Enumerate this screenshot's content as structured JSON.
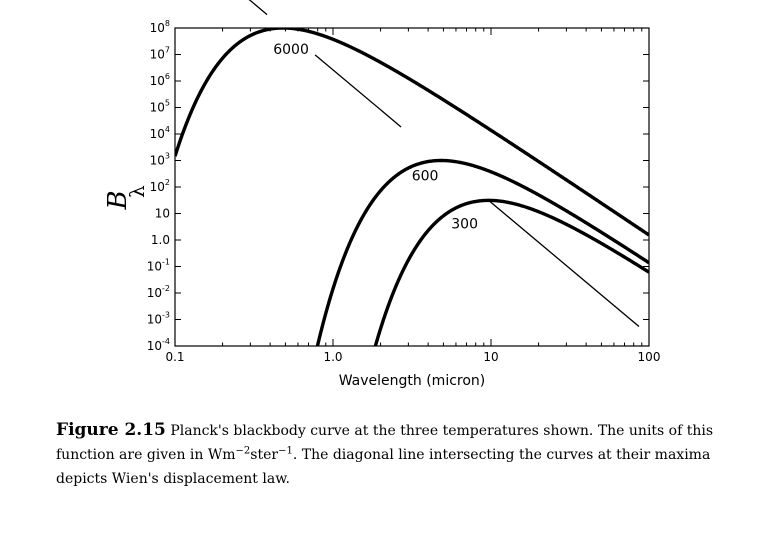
{
  "chart_data": {
    "type": "line",
    "x_scale": "log",
    "y_scale": "log",
    "xlabel": "Wavelength (micron)",
    "ylabel": "B",
    "ylabel_sub": "λ",
    "xlim": [
      0.1,
      100
    ],
    "ylim": [
      0.0001,
      100000000
    ],
    "x_ticks": [
      "0.1",
      "1.0",
      "10",
      "100"
    ],
    "x_tick_values": [
      0.1,
      1,
      10,
      100
    ],
    "y_tick_values": [
      0.0001,
      0.001,
      0.01,
      0.1,
      1,
      10,
      100,
      1000,
      10000,
      100000,
      1000000,
      10000000,
      100000000
    ],
    "y_ticks": [
      {
        "text": "10",
        "sup": "-4"
      },
      {
        "text": "10",
        "sup": "-3"
      },
      {
        "text": "10",
        "sup": "-2"
      },
      {
        "text": "10",
        "sup": "-1"
      },
      {
        "text": "1.0",
        "sup": ""
      },
      {
        "text": "10",
        "sup": ""
      },
      {
        "text": "10",
        "sup": "2"
      },
      {
        "text": "10",
        "sup": "3"
      },
      {
        "text": "10",
        "sup": "4"
      },
      {
        "text": "10",
        "sup": "5"
      },
      {
        "text": "10",
        "sup": "6"
      },
      {
        "text": "10",
        "sup": "7"
      },
      {
        "text": "10",
        "sup": "8"
      }
    ],
    "grid": false,
    "series": [
      {
        "label": "6000",
        "temperature_K": 6000
      },
      {
        "label": "600",
        "temperature_K": 600
      },
      {
        "label": "300",
        "temperature_K": 300
      }
    ],
    "annotations": [
      "diagonal line through curve maxima (Wien's displacement law)"
    ]
  },
  "caption": {
    "figure_label": "Figure 2.15",
    "text_before_units": " Planck's blackbody curve at the three temperatures shown.  The units of this function are given in Wm",
    "sup1": "−2",
    "text_mid": "ster",
    "sup2": "−1",
    "text_after": ".  The diagonal line intersecting the curves at their maxima depicts Wien's displacement law."
  }
}
